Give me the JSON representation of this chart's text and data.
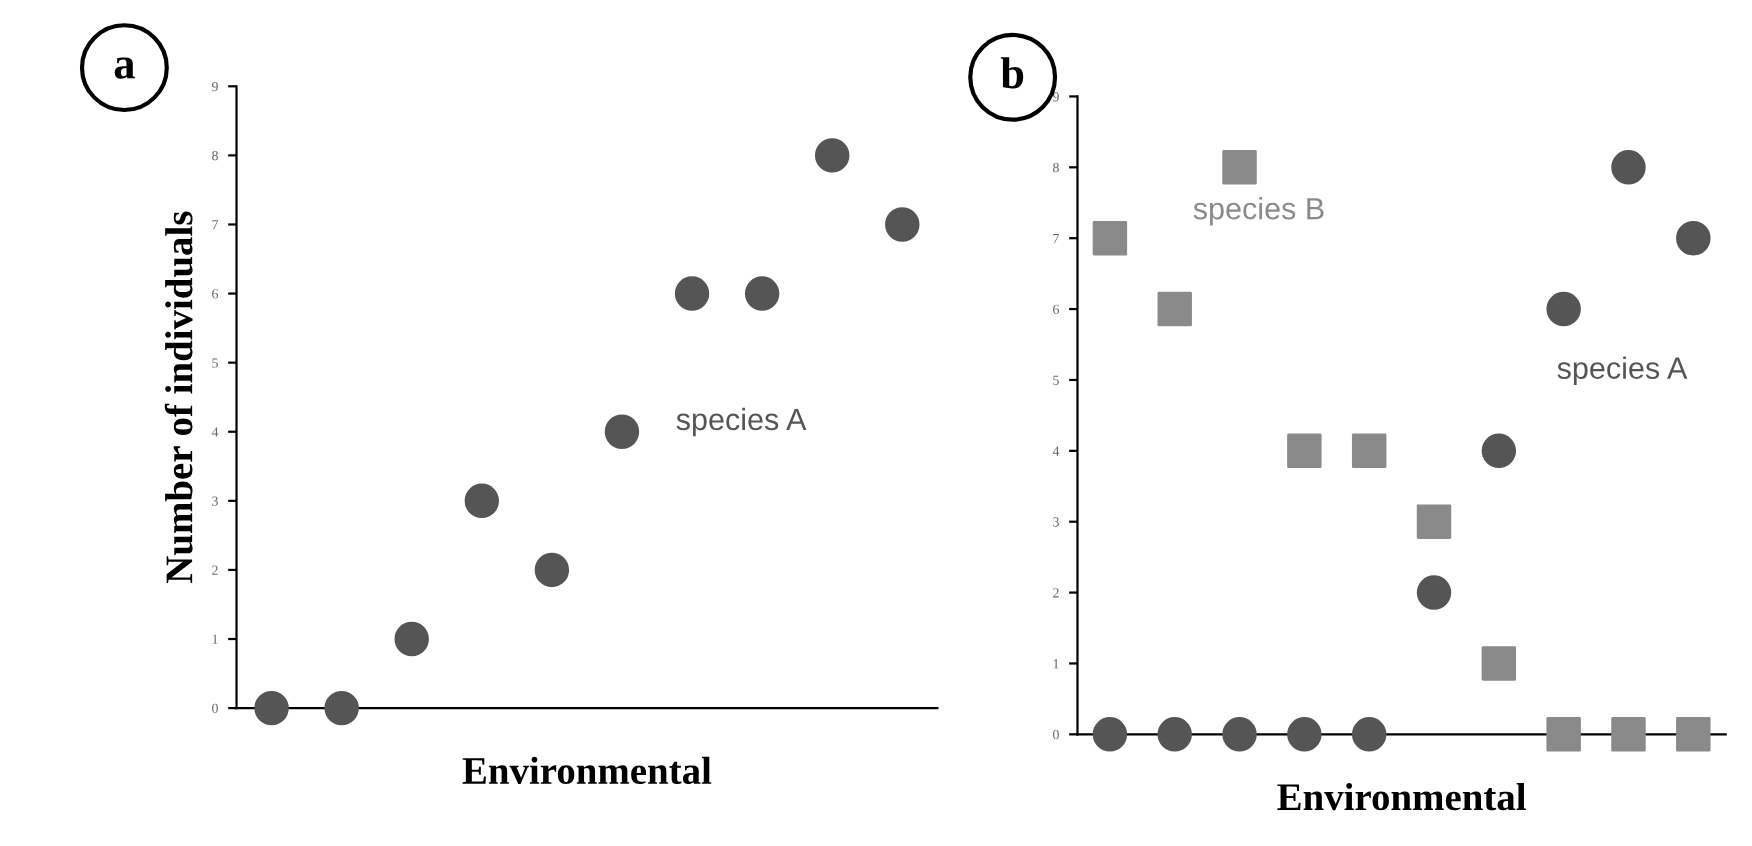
{
  "chart_data": [
    {
      "type": "scatter",
      "title": "a",
      "xlabel": "Environmental",
      "ylabel": "Number of individuals",
      "categories": [
        null,
        null,
        null,
        null,
        null,
        null,
        null,
        null,
        null,
        null
      ],
      "series": [
        {
          "name": "species A",
          "color": "#555555",
          "marker": "circle",
          "values": [
            0,
            0,
            1,
            3,
            2,
            4,
            6,
            6,
            8,
            7
          ]
        }
      ],
      "ylim": [
        0,
        9
      ],
      "yticks": [
        0,
        1,
        2,
        3,
        4,
        5,
        6,
        7,
        8,
        9
      ],
      "grid": false,
      "legend": false
    },
    {
      "type": "scatter",
      "title": "b",
      "xlabel": "Environmental",
      "categories": [
        null,
        null,
        null,
        null,
        null,
        null,
        null,
        null,
        null,
        null
      ],
      "series": [
        {
          "name": "species B",
          "color": "#8a8a8a",
          "marker": "square",
          "values": [
            7,
            6,
            8,
            4,
            4,
            3,
            1,
            0,
            0,
            0
          ]
        },
        {
          "name": "species A",
          "color": "#555555",
          "marker": "circle",
          "values": [
            0,
            0,
            0,
            0,
            0,
            2,
            4,
            6,
            8,
            7
          ]
        }
      ],
      "ylim": [
        0,
        9
      ],
      "yticks": [
        0,
        1,
        2,
        3,
        4,
        5,
        6,
        7,
        8,
        9
      ],
      "grid": false,
      "legend": false
    }
  ]
}
